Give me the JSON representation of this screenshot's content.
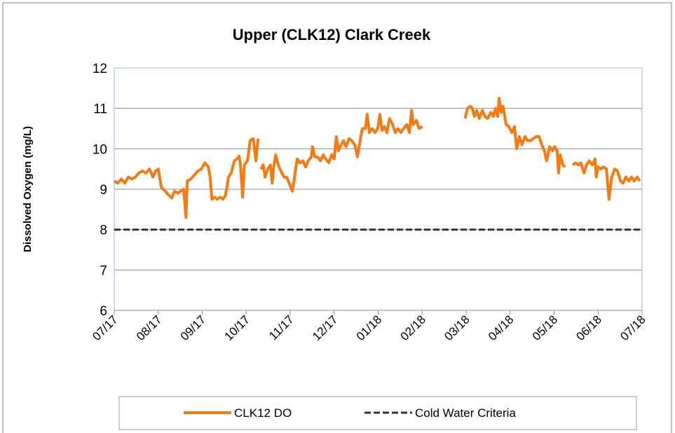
{
  "chart_data": {
    "type": "line",
    "title": "Upper (CLK12) Clark Creek",
    "y_label": "Dissolved Oxygen (mg/L)",
    "xlim": [
      0,
      12
    ],
    "xticks": [
      {
        "value": 0,
        "label": "07/17"
      },
      {
        "value": 1,
        "label": "08/17"
      },
      {
        "value": 2,
        "label": "09/17"
      },
      {
        "value": 3,
        "label": "10/17"
      },
      {
        "value": 4,
        "label": "11/17"
      },
      {
        "value": 5,
        "label": "12/17"
      },
      {
        "value": 6,
        "label": "01/18"
      },
      {
        "value": 7,
        "label": "02/18"
      },
      {
        "value": 8,
        "label": "03/18"
      },
      {
        "value": 9,
        "label": "04/18"
      },
      {
        "value": 10,
        "label": "05/18"
      },
      {
        "value": 11,
        "label": "06/18"
      },
      {
        "value": 12,
        "label": "07/18"
      }
    ],
    "ylim": [
      6,
      12
    ],
    "yticks": [
      6,
      7,
      8,
      9,
      10,
      11,
      12
    ],
    "grid": true,
    "legend": "bottom",
    "series": [
      {
        "name": "CLK12 DO",
        "color": "#f47b12",
        "dash": false,
        "x": [
          0,
          0.08,
          0.16,
          0.24,
          0.32,
          0.4,
          0.48,
          0.56,
          0.64,
          0.72,
          0.8,
          0.88,
          0.94,
          1.0,
          1.07,
          1.16,
          1.24,
          1.31,
          1.37,
          1.45,
          1.51,
          1.58,
          1.63,
          1.66,
          1.74,
          1.82,
          1.9,
          1.98,
          2.06,
          2.14,
          2.18,
          2.22,
          2.28,
          2.34,
          2.41,
          2.47,
          2.53,
          2.6,
          2.66,
          2.73,
          2.79,
          2.84,
          2.87,
          2.92,
          2.96,
          3.03,
          3.09,
          3.16,
          3.22,
          3.27,
          3.3,
          3.33,
          3.39,
          3.43,
          3.49,
          3.55,
          3.59,
          3.62,
          3.67,
          3.73,
          3.79,
          3.86,
          3.92,
          3.98,
          4.05,
          4.1,
          4.16,
          4.22,
          4.29,
          4.35,
          4.41,
          4.48,
          4.51,
          4.56,
          4.62,
          4.69,
          4.75,
          4.81,
          4.88,
          4.94,
          5.0,
          5.05,
          5.1,
          5.16,
          5.21,
          5.27,
          5.34,
          5.4,
          5.47,
          5.53,
          5.59,
          5.64,
          5.71,
          5.75,
          5.8,
          5.86,
          5.93,
          5.99,
          6.04,
          6.09,
          6.14,
          6.2,
          6.26,
          6.33,
          6.39,
          6.45,
          6.52,
          6.58,
          6.65,
          6.71,
          6.76,
          6.8,
          6.87,
          6.93,
          7.01,
          7.5,
          7.98,
          8.03,
          8.1,
          8.14,
          8.19,
          8.24,
          8.3,
          8.37,
          8.43,
          8.49,
          8.56,
          8.62,
          8.67,
          8.72,
          8.75,
          8.8,
          8.84,
          8.91,
          8.97,
          9.04,
          9.1,
          9.15,
          9.21,
          9.27,
          9.34,
          9.4,
          9.47,
          9.53,
          9.59,
          9.66,
          9.72,
          9.78,
          9.83,
          9.9,
          9.96,
          10.01,
          10.07,
          10.1,
          10.14,
          10.2,
          10.25,
          10.33,
          10.42,
          10.49,
          10.55,
          10.61,
          10.68,
          10.74,
          10.8,
          10.87,
          10.93,
          10.96,
          11.0,
          11.06,
          11.12,
          11.19,
          11.25,
          11.31,
          11.38,
          11.44,
          11.51,
          11.57,
          11.63,
          11.7,
          11.76,
          11.82,
          11.89,
          11.95
        ],
        "values": [
          9.2,
          9.15,
          9.25,
          9.15,
          9.3,
          9.25,
          9.3,
          9.4,
          9.45,
          9.4,
          9.5,
          9.3,
          9.45,
          9.5,
          9.05,
          8.95,
          8.85,
          8.78,
          8.95,
          8.9,
          8.95,
          9.0,
          8.3,
          9.2,
          9.25,
          9.35,
          9.45,
          9.5,
          9.65,
          9.55,
          9.3,
          8.75,
          8.8,
          8.75,
          8.8,
          8.75,
          8.85,
          9.3,
          9.4,
          9.7,
          9.75,
          9.82,
          9.6,
          8.8,
          9.6,
          9.7,
          10.2,
          10.25,
          9.7,
          10.25,
          null,
          9.5,
          9.6,
          9.3,
          9.5,
          9.6,
          9.15,
          9.5,
          9.85,
          9.6,
          9.45,
          9.3,
          9.3,
          9.15,
          8.95,
          9.3,
          9.75,
          9.65,
          9.7,
          9.55,
          9.7,
          9.8,
          10.05,
          9.8,
          9.8,
          9.7,
          9.85,
          9.75,
          9.65,
          9.85,
          9.75,
          10.3,
          9.95,
          10.1,
          10.2,
          10.05,
          10.25,
          10.2,
          10.1,
          9.8,
          10.2,
          10.5,
          10.5,
          10.85,
          10.4,
          10.5,
          10.4,
          10.5,
          10.85,
          10.45,
          10.55,
          10.4,
          10.75,
          10.6,
          10.4,
          10.5,
          10.4,
          10.5,
          10.6,
          10.4,
          10.95,
          10.6,
          10.7,
          10.5,
          10.55,
          null,
          10.75,
          11.0,
          11.05,
          11.0,
          10.8,
          10.95,
          10.75,
          10.95,
          10.8,
          10.75,
          10.9,
          10.8,
          11.0,
          10.8,
          11.25,
          10.9,
          11.05,
          10.6,
          10.55,
          10.4,
          10.55,
          10.0,
          10.3,
          10.1,
          10.3,
          10.2,
          10.2,
          10.25,
          10.3,
          10.3,
          10.1,
          9.95,
          9.7,
          10.05,
          9.95,
          10.05,
          9.95,
          9.4,
          9.85,
          9.6,
          9.55,
          null,
          9.6,
          9.65,
          9.6,
          9.65,
          9.4,
          9.6,
          9.7,
          9.6,
          9.75,
          9.3,
          9.55,
          9.5,
          9.55,
          9.5,
          8.75,
          9.3,
          9.5,
          9.45,
          9.2,
          9.15,
          9.3,
          9.2,
          9.3,
          9.2,
          9.3,
          9.2
        ]
      },
      {
        "name": "Cold Water Criteria",
        "color": "#333333",
        "dash": true,
        "x": [
          0,
          12
        ],
        "values": [
          8,
          8
        ]
      }
    ]
  }
}
